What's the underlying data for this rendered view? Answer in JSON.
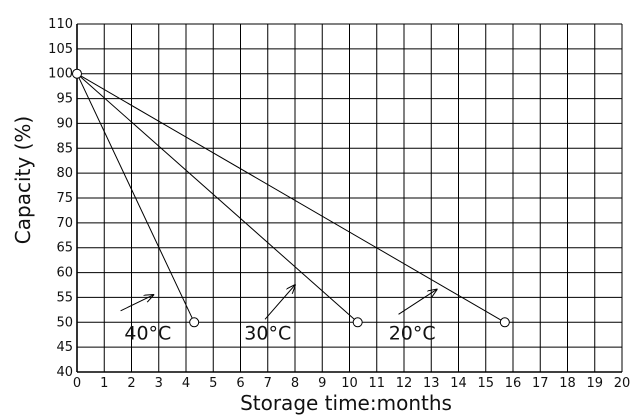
{
  "chart_data": {
    "type": "line",
    "title": "",
    "xlabel": "Storage time:months",
    "ylabel": "Capacity (%)",
    "xlim": [
      0,
      20
    ],
    "ylim": [
      40,
      110
    ],
    "x_ticks": [
      "0",
      "1",
      "2",
      "3",
      "4",
      "5",
      "6",
      "7",
      "8",
      "9",
      "10",
      "11",
      "12",
      "13",
      "14",
      "15",
      "16",
      "17",
      "18",
      "19",
      "20"
    ],
    "y_ticks": [
      "40",
      "45",
      "50",
      "55",
      "60",
      "65",
      "70",
      "75",
      "80",
      "85",
      "90",
      "95",
      "100",
      "105",
      "110"
    ],
    "grid": true,
    "line_color": "#000000",
    "series": [
      {
        "name": "40°C",
        "x": [
          0,
          4.3
        ],
        "y": [
          100,
          50
        ]
      },
      {
        "name": "30°C",
        "x": [
          0,
          10.3
        ],
        "y": [
          100,
          50
        ]
      },
      {
        "name": "20°C",
        "x": [
          0,
          15.7
        ],
        "y": [
          100,
          50
        ]
      }
    ],
    "annotations": [
      {
        "text": "40°C",
        "x": 2.6,
        "y": 46.5,
        "arrow_from": [
          1.6,
          52.3
        ],
        "arrow_to": [
          2.8,
          55.5
        ]
      },
      {
        "text": "30°C",
        "x": 7.0,
        "y": 46.5,
        "arrow_from": [
          6.9,
          50.6
        ],
        "arrow_to": [
          8.0,
          57.5
        ]
      },
      {
        "text": "20°C",
        "x": 12.3,
        "y": 46.5,
        "arrow_from": [
          11.8,
          51.6
        ],
        "arrow_to": [
          13.2,
          56.6
        ]
      }
    ]
  }
}
